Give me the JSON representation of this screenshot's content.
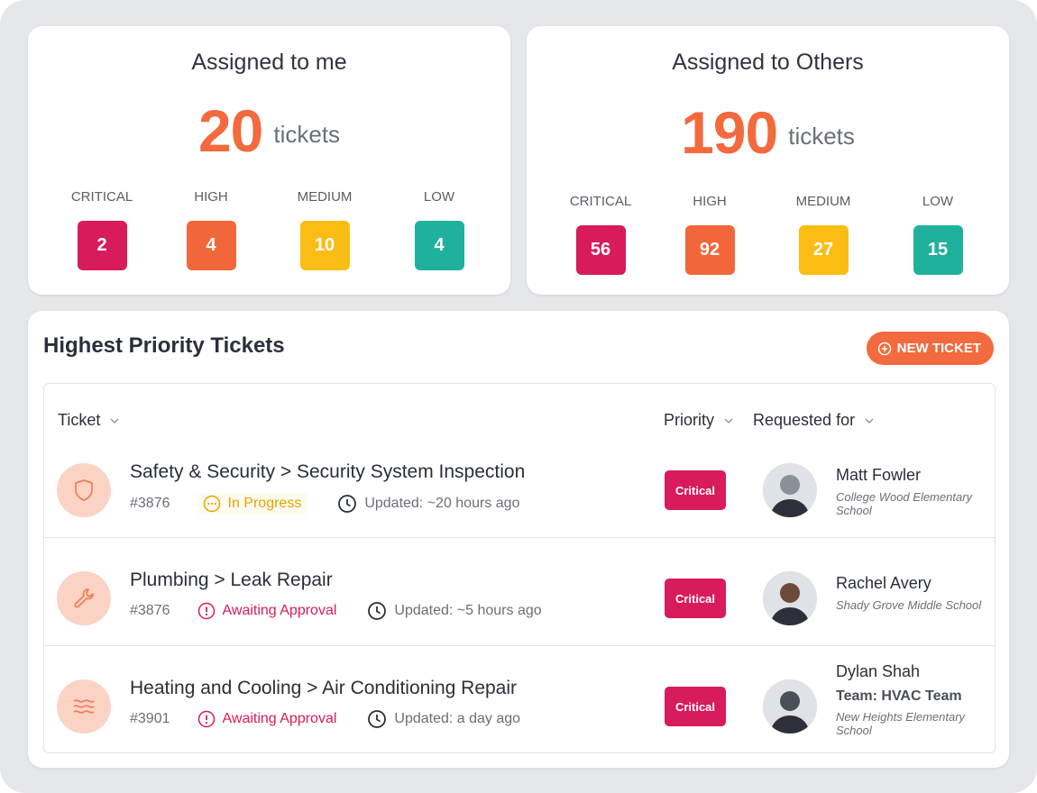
{
  "summary": [
    {
      "title": "Assigned to me",
      "count": "20",
      "unit": "tickets",
      "levels": [
        {
          "label": "CRITICAL",
          "count": "2"
        },
        {
          "label": "HIGH",
          "count": "4"
        },
        {
          "label": "MEDIUM",
          "count": "10"
        },
        {
          "label": "LOW",
          "count": "4"
        }
      ]
    },
    {
      "title": "Assigned to Others",
      "count": "190",
      "unit": "tickets",
      "levels": [
        {
          "label": "CRITICAL",
          "count": "56"
        },
        {
          "label": "HIGH",
          "count": "92"
        },
        {
          "label": "MEDIUM",
          "count": "27"
        },
        {
          "label": "LOW",
          "count": "15"
        }
      ]
    }
  ],
  "tickets_panel": {
    "title": "Highest Priority Tickets",
    "new_button": "NEW TICKET",
    "columns": [
      "Ticket",
      "Priority",
      "Requested for"
    ],
    "rows": [
      {
        "path": "Safety & Security > Security System Inspection",
        "id": "#3876",
        "status": "In Progress",
        "updated": "Updated: ~20 hours ago",
        "priority": "Critical",
        "requester": "Matt Fowler",
        "school": "College Wood Elementary School"
      },
      {
        "path": "Plumbing > Leak Repair",
        "id": "#3876",
        "status": "Awaiting Approval",
        "updated": "Updated: ~5 hours ago",
        "priority": "Critical",
        "requester": "Rachel Avery",
        "school": "Shady Grove Middle School"
      },
      {
        "path": "Heating and Cooling > Air Conditioning Repair",
        "id": "#3901",
        "status": "Awaiting Approval",
        "updated": "Updated: a day ago",
        "priority": "Critical",
        "requester": "Dylan Shah",
        "team": "Team: HVAC Team",
        "school": "New Heights Elementary School"
      }
    ]
  }
}
